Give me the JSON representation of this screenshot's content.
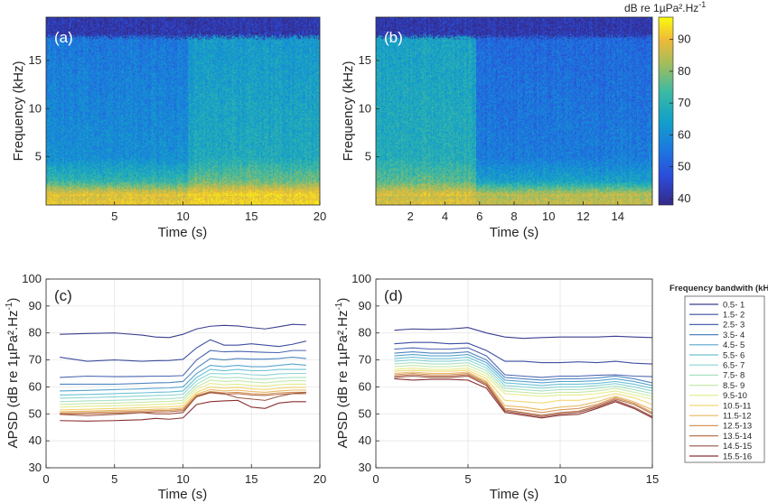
{
  "colorbar": {
    "title": "dB re 1µPa².Hz",
    "title_sup": "-1",
    "ticks": [
      40,
      50,
      60,
      70,
      80,
      90
    ],
    "range": [
      38,
      97
    ]
  },
  "legend": {
    "title": "Frequency bandwith (kHz)",
    "entries": [
      "0.5- 1",
      "1.5- 2",
      "2.5- 3",
      "3.5- 4",
      "4.5- 5",
      "5.5- 6",
      "6.5- 7",
      "7.5- 8",
      "8.5- 9",
      "9.5-10",
      "10.5-11",
      "11.5-12",
      "12.5-13",
      "13.5-14",
      "14.5-15",
      "15.5-16"
    ],
    "colors": [
      "#3a3f8f",
      "#3e4fa0",
      "#4a66b0",
      "#4f86c2",
      "#5aa5cf",
      "#6cc2d6",
      "#8ad4d4",
      "#a9e0c4",
      "#c7e8a9",
      "#e3ec8c",
      "#f2d873",
      "#e8b865",
      "#d5965a",
      "#b9734f",
      "#9c5444",
      "#8a3030"
    ]
  },
  "chart_data": [
    {
      "type": "heatmap",
      "panel": "(a)",
      "xlabel": "Time (s)",
      "ylabel": "Frequency (kHz)",
      "xlim": [
        0,
        20
      ],
      "ylim": [
        0,
        19.5
      ],
      "xticks": [
        5,
        10,
        15,
        20
      ],
      "yticks": [
        5,
        10,
        15
      ],
      "change_time": 10.3,
      "upper_freq_cutoff": 17.5,
      "levels_before_dB": {
        "low_band_0_1kHz": 90,
        "mid_band_2_5kHz": 70,
        "upper_band_5_17kHz": 55,
        "above_17kHz": 40
      },
      "levels_after_dB": {
        "low_band_0_1kHz": 93,
        "mid_band_2_5kHz": 76,
        "upper_band_5_17kHz": 62,
        "above_17kHz": 40
      }
    },
    {
      "type": "heatmap",
      "panel": "(b)",
      "xlabel": "Time (s)",
      "ylabel": "Frequency (kHz)",
      "xlim": [
        0,
        16
      ],
      "ylim": [
        0,
        19.5
      ],
      "xticks": [
        2,
        4,
        6,
        8,
        10,
        12,
        14
      ],
      "yticks": [
        5,
        10,
        15
      ],
      "change_time": 5.8,
      "upper_freq_cutoff": 17.5,
      "levels_before_dB": {
        "low_band_0_1kHz": 88,
        "mid_band_2_5kHz": 74,
        "upper_band_5_17kHz": 64,
        "above_17kHz": 40
      },
      "levels_after_dB": {
        "low_band_0_1kHz": 85,
        "mid_band_2_5kHz": 64,
        "upper_band_5_17kHz": 52,
        "above_17kHz": 40
      }
    },
    {
      "type": "line",
      "panel": "(c)",
      "xlabel": "Time (s)",
      "ylabel": "APSD (dB re 1µPa².Hz",
      "ylabel_sup": "-1",
      "xlim": [
        0,
        20
      ],
      "ylim": [
        30,
        100
      ],
      "xticks": [
        0,
        5,
        10,
        15,
        20
      ],
      "yticks": [
        30,
        40,
        50,
        60,
        70,
        80,
        90,
        100
      ],
      "grid": true,
      "x": [
        1,
        3,
        5,
        7,
        8,
        9,
        10,
        11,
        12,
        13,
        14,
        15,
        16,
        17,
        18,
        19
      ],
      "series": [
        {
          "name": "0.5- 1",
          "values": [
            79.5,
            79.8,
            80.0,
            79.2,
            78.5,
            78.3,
            79.5,
            81.5,
            82.5,
            82.8,
            82.6,
            82.0,
            81.5,
            82.3,
            83.2,
            83.0
          ]
        },
        {
          "name": "1.5- 2",
          "values": [
            71.0,
            69.5,
            70.0,
            69.5,
            69.7,
            69.8,
            70.2,
            74.5,
            77.5,
            75.5,
            75.5,
            76.0,
            75.5,
            75.0,
            75.8,
            77.0
          ]
        },
        {
          "name": "2.5- 3",
          "values": [
            63.5,
            64.0,
            63.8,
            63.9,
            64.0,
            64.0,
            64.2,
            70.0,
            73.5,
            73.0,
            73.2,
            73.0,
            72.8,
            72.7,
            73.5,
            73.5
          ]
        },
        {
          "name": "3.5- 4",
          "values": [
            61.0,
            61.0,
            61.0,
            61.3,
            61.5,
            61.6,
            62.0,
            67.0,
            70.5,
            70.0,
            70.5,
            70.3,
            70.3,
            70.5,
            71.0,
            70.5
          ]
        },
        {
          "name": "4.5- 5",
          "values": [
            58.5,
            58.7,
            59.0,
            59.3,
            59.5,
            59.6,
            60.0,
            65.0,
            68.0,
            67.5,
            68.0,
            67.5,
            67.5,
            68.0,
            68.5,
            68.0
          ]
        },
        {
          "name": "5.5- 6",
          "values": [
            57.0,
            57.2,
            57.5,
            57.8,
            58.0,
            58.1,
            58.5,
            63.5,
            66.5,
            66.0,
            66.5,
            66.0,
            66.0,
            66.5,
            66.5,
            66.5
          ]
        },
        {
          "name": "6.5- 7",
          "values": [
            55.8,
            56.0,
            56.3,
            56.6,
            56.8,
            56.9,
            57.3,
            62.3,
            65.0,
            64.8,
            65.0,
            64.5,
            64.3,
            64.8,
            65.0,
            65.0
          ]
        },
        {
          "name": "7.5- 8",
          "values": [
            54.5,
            54.8,
            55.0,
            55.3,
            55.5,
            55.6,
            56.0,
            61.0,
            63.8,
            63.3,
            63.5,
            63.0,
            62.8,
            63.3,
            63.5,
            63.5
          ]
        },
        {
          "name": "8.5- 9",
          "values": [
            53.5,
            53.8,
            54.0,
            54.3,
            54.5,
            54.6,
            55.0,
            60.0,
            62.5,
            62.0,
            62.3,
            61.8,
            61.5,
            62.0,
            62.3,
            62.3
          ]
        },
        {
          "name": "9.5-10",
          "values": [
            52.5,
            52.8,
            53.0,
            53.3,
            53.5,
            53.6,
            54.0,
            59.0,
            61.3,
            60.8,
            61.0,
            60.5,
            60.3,
            60.8,
            61.0,
            61.0
          ]
        },
        {
          "name": "10.5-11",
          "values": [
            51.5,
            51.7,
            52.0,
            52.3,
            52.5,
            52.6,
            53.0,
            58.0,
            60.0,
            59.5,
            59.8,
            59.3,
            59.0,
            59.5,
            59.8,
            59.8
          ]
        },
        {
          "name": "11.5-12",
          "values": [
            50.8,
            51.0,
            51.3,
            51.5,
            51.7,
            51.8,
            52.2,
            57.3,
            59.0,
            58.5,
            58.8,
            58.3,
            58.0,
            58.5,
            58.8,
            58.8
          ]
        },
        {
          "name": "12.5-13",
          "values": [
            50.3,
            50.5,
            50.8,
            51.0,
            51.2,
            51.3,
            51.7,
            56.8,
            58.3,
            57.8,
            58.0,
            57.5,
            57.3,
            57.8,
            58.0,
            58.0
          ]
        },
        {
          "name": "13.5-14",
          "values": [
            50.0,
            50.0,
            50.3,
            50.5,
            50.7,
            50.8,
            51.2,
            56.3,
            57.8,
            57.3,
            57.5,
            57.0,
            56.8,
            57.3,
            57.5,
            57.5
          ]
        },
        {
          "name": "14.5-15",
          "values": [
            49.8,
            49.3,
            49.8,
            50.5,
            50.0,
            50.0,
            50.5,
            56.5,
            58.0,
            57.5,
            56.0,
            55.5,
            55.0,
            56.5,
            57.5,
            58.0
          ]
        },
        {
          "name": "15.5-16",
          "values": [
            47.5,
            47.3,
            47.5,
            47.8,
            48.3,
            48.0,
            48.5,
            53.5,
            54.5,
            54.8,
            55.0,
            52.5,
            52.0,
            54.0,
            54.5,
            54.5
          ]
        }
      ]
    },
    {
      "type": "line",
      "panel": "(d)",
      "xlabel": "Time (s)",
      "ylabel": "APSD (dB re 1µPa².Hz",
      "ylabel_sup": "-1",
      "xlim": [
        0,
        15
      ],
      "ylim": [
        30,
        100
      ],
      "xticks": [
        0,
        5,
        10,
        15
      ],
      "yticks": [
        30,
        40,
        50,
        60,
        70,
        80,
        90,
        100
      ],
      "grid": true,
      "x": [
        1,
        2,
        3,
        4,
        5,
        6,
        7,
        8,
        9,
        10,
        11,
        12,
        13,
        14,
        15
      ],
      "series": [
        {
          "name": "0.5- 1",
          "values": [
            81.0,
            81.5,
            81.3,
            81.5,
            82.0,
            80.0,
            78.5,
            78.0,
            78.3,
            78.5,
            78.5,
            78.5,
            78.8,
            78.5,
            78.3
          ]
        },
        {
          "name": "1.5- 2",
          "values": [
            76.0,
            76.5,
            76.5,
            76.0,
            76.2,
            73.5,
            69.5,
            69.5,
            69.0,
            69.0,
            69.3,
            69.0,
            69.5,
            68.8,
            68.5
          ]
        },
        {
          "name": "2.5- 3",
          "values": [
            74.0,
            74.5,
            74.0,
            74.0,
            74.5,
            71.5,
            64.5,
            64.0,
            63.5,
            64.0,
            64.0,
            64.3,
            64.5,
            64.0,
            63.8
          ]
        },
        {
          "name": "3.5- 4",
          "values": [
            72.5,
            73.0,
            72.5,
            72.5,
            73.0,
            70.0,
            63.5,
            63.0,
            62.5,
            63.0,
            63.0,
            63.3,
            64.0,
            63.0,
            61.5
          ]
        },
        {
          "name": "4.5- 5",
          "values": [
            71.5,
            72.0,
            71.5,
            71.5,
            72.0,
            69.0,
            62.5,
            62.0,
            61.5,
            62.0,
            62.0,
            62.3,
            63.0,
            62.0,
            60.5
          ]
        },
        {
          "name": "5.5- 6",
          "values": [
            70.5,
            71.0,
            70.5,
            70.5,
            71.0,
            68.0,
            61.5,
            61.0,
            60.5,
            61.0,
            61.0,
            61.3,
            62.0,
            61.0,
            59.5
          ]
        },
        {
          "name": "6.5- 7",
          "values": [
            69.5,
            70.0,
            69.5,
            69.5,
            70.0,
            67.0,
            60.5,
            60.0,
            59.5,
            60.0,
            60.0,
            60.5,
            61.2,
            60.0,
            58.5
          ]
        },
        {
          "name": "7.5- 8",
          "values": [
            68.5,
            69.0,
            68.5,
            68.5,
            69.0,
            66.0,
            59.5,
            59.0,
            58.5,
            59.0,
            59.0,
            59.5,
            60.3,
            59.0,
            57.5
          ]
        },
        {
          "name": "8.5- 9",
          "values": [
            67.5,
            68.0,
            67.5,
            67.5,
            68.0,
            65.0,
            58.5,
            58.0,
            57.5,
            58.0,
            58.0,
            58.5,
            59.5,
            58.0,
            56.5
          ]
        },
        {
          "name": "9.5-10",
          "values": [
            66.5,
            67.0,
            66.5,
            66.5,
            67.0,
            64.0,
            57.5,
            57.0,
            56.5,
            57.0,
            57.0,
            57.5,
            58.5,
            57.0,
            55.5
          ]
        },
        {
          "name": "10.5-11",
          "values": [
            65.8,
            66.2,
            65.8,
            65.8,
            66.2,
            63.0,
            55.0,
            54.5,
            54.0,
            55.0,
            55.0,
            56.0,
            57.5,
            56.0,
            53.5
          ]
        },
        {
          "name": "11.5-12",
          "values": [
            65.0,
            65.5,
            65.0,
            65.0,
            65.5,
            62.0,
            53.0,
            52.5,
            51.5,
            52.5,
            53.0,
            54.5,
            56.5,
            54.5,
            51.5
          ]
        },
        {
          "name": "12.5-13",
          "values": [
            64.5,
            65.0,
            64.5,
            64.5,
            65.0,
            61.5,
            52.0,
            51.5,
            50.5,
            51.5,
            52.0,
            53.5,
            56.0,
            54.0,
            50.5
          ]
        },
        {
          "name": "13.5-14",
          "values": [
            64.0,
            64.5,
            64.0,
            64.0,
            64.5,
            61.0,
            51.5,
            50.5,
            49.5,
            50.5,
            51.0,
            53.0,
            55.5,
            53.5,
            50.0
          ]
        },
        {
          "name": "14.5-15",
          "values": [
            63.5,
            64.0,
            63.5,
            63.5,
            64.0,
            60.5,
            51.0,
            50.0,
            49.0,
            50.0,
            50.5,
            52.5,
            55.0,
            52.5,
            49.0
          ]
        },
        {
          "name": "15.5-16",
          "values": [
            63.0,
            62.5,
            62.8,
            62.8,
            62.5,
            59.5,
            50.5,
            49.5,
            48.5,
            49.5,
            49.8,
            52.0,
            54.5,
            52.0,
            48.5
          ]
        }
      ]
    }
  ]
}
